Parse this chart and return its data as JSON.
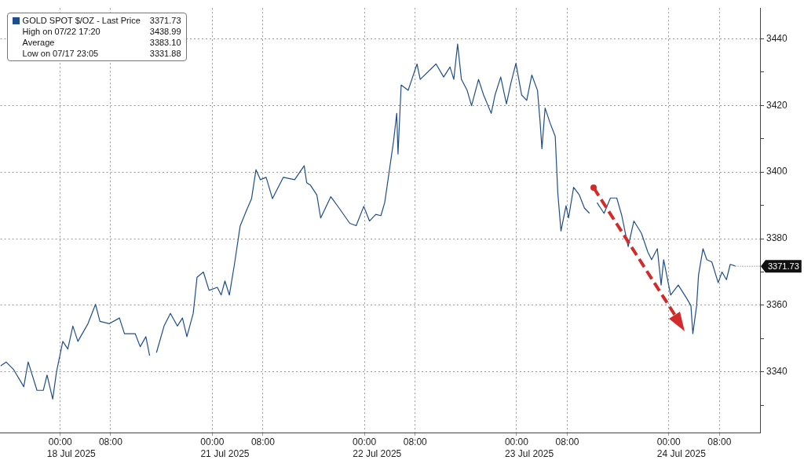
{
  "chart_data": [
    {
      "type": "line",
      "x": [
        "2025-07-17T14:30",
        "2025-07-17T15:24",
        "2025-07-17T16:36",
        "2025-07-17T18:12",
        "2025-07-17T18:54",
        "2025-07-17T20:18",
        "2025-07-17T21:18",
        "2025-07-17T21:54",
        "2025-07-17T22:48",
        "2025-07-17T23:24",
        "2025-07-18T00:24",
        "2025-07-18T01:12",
        "2025-07-18T02:00",
        "2025-07-18T02:48",
        "2025-07-18T04:24",
        "2025-07-18T05:36",
        "2025-07-18T06:18",
        "2025-07-18T07:48",
        "2025-07-18T09:24",
        "2025-07-18T10:12",
        "2025-07-18T11:54",
        "2025-07-18T12:42",
        "2025-07-18T13:36",
        "2025-07-18T14:12"
      ],
      "series": [
        {
          "name": "GOLD SPOT $/OZ - Last Price",
          "color": "#1f4e8c",
          "values": [
            3341.8,
            3343.0,
            3340.7,
            3335.6,
            3343.0,
            3334.5,
            3334.5,
            3339.1,
            3331.9,
            3340.0,
            3349.2,
            3346.9,
            3353.8,
            3349.2,
            3354.5,
            3360.3,
            3355.2,
            3354.5,
            3356.2,
            3351.5,
            3351.5,
            3347.6,
            3350.6,
            3344.9
          ]
        }
      ],
      "xlim": [
        "2025-07-17T14:30",
        "2025-07-18T14:18"
      ],
      "xticks": [
        {
          "value": "2025-07-18T00:00",
          "label": "00:00"
        },
        {
          "value": "2025-07-18T08:00",
          "label": "08:00"
        }
      ],
      "ylim": [
        3321.8,
        3449.2
      ],
      "yticks": [
        3340,
        3360,
        3380,
        3400,
        3420,
        3440
      ],
      "tick_labels": "x",
      "grid": true,
      "legend": "top left",
      "marker": "none",
      "line_style": "solid",
      "annotations": [
        "3371.73",
        "High on 07/22 17:20",
        "3438.99",
        "Average",
        "3383.10",
        "Low on 07/17 23:05",
        "3331.88",
        "18 Jul 2025"
      ]
    },
    {
      "type": "line",
      "x": [
        "2025-07-20T15:12",
        "2025-07-20T16:24",
        "2025-07-20T17:24",
        "2025-07-20T18:30",
        "2025-07-20T19:18",
        "2025-07-20T20:00",
        "2025-07-20T21:00",
        "2025-07-20T21:36",
        "2025-07-20T22:36",
        "2025-07-20T23:30",
        "2025-07-21T00:48",
        "2025-07-21T01:24",
        "2025-07-21T02:00",
        "2025-07-21T02:42",
        "2025-07-21T03:30",
        "2025-07-21T04:24",
        "2025-07-21T05:24",
        "2025-07-21T06:12",
        "2025-07-21T06:54",
        "2025-07-21T07:36",
        "2025-07-21T08:30",
        "2025-07-21T09:30",
        "2025-07-21T11:12",
        "2025-07-21T13:00",
        "2025-07-21T14:30",
        "2025-07-21T14:54",
        "2025-07-21T15:30",
        "2025-07-21T16:30",
        "2025-07-21T17:06",
        "2025-07-21T18:42",
        "2025-07-21T20:00",
        "2025-07-21T21:42",
        "2025-07-21T22:42",
        "2025-07-21T23:54",
        "2025-07-22T00:48",
        "2025-07-22T01:48",
        "2025-07-22T02:36",
        "2025-07-22T03:12",
        "2025-07-22T03:54",
        "2025-07-22T04:36",
        "2025-07-22T05:06",
        "2025-07-22T05:18",
        "2025-07-22T05:48",
        "2025-07-22T06:54",
        "2025-07-22T08:18",
        "2025-07-22T08:48",
        "2025-07-22T11:18",
        "2025-07-22T12:30",
        "2025-07-22T13:30",
        "2025-07-22T14:06",
        "2025-07-22T14:42",
        "2025-07-22T15:18",
        "2025-07-22T16:12",
        "2025-07-22T16:54",
        "2025-07-22T18:00",
        "2025-07-22T18:48",
        "2025-07-22T20:00",
        "2025-07-22T20:36",
        "2025-07-22T21:30",
        "2025-07-22T22:24",
        "2025-07-22T23:06",
        "2025-07-22T23:54",
        "2025-07-23T00:48",
        "2025-07-23T01:36",
        "2025-07-23T02:24",
        "2025-07-23T03:18",
        "2025-07-23T03:42",
        "2025-07-23T04:00",
        "2025-07-23T04:30",
        "2025-07-23T05:18",
        "2025-07-23T06:06",
        "2025-07-23T06:30",
        "2025-07-23T07:00",
        "2025-07-23T07:48",
        "2025-07-23T08:12",
        "2025-07-23T09:00",
        "2025-07-23T09:54",
        "2025-07-23T10:42",
        "2025-07-23T11:30",
        "2025-07-23T12:06",
        "2025-07-23T12:42",
        "2025-07-23T13:48",
        "2025-07-23T14:48",
        "2025-07-23T15:48",
        "2025-07-23T16:36",
        "2025-07-23T17:36",
        "2025-07-23T18:30",
        "2025-07-23T19:42",
        "2025-07-23T20:42",
        "2025-07-23T21:18",
        "2025-07-23T22:12",
        "2025-07-23T22:48",
        "2025-07-23T23:12",
        "2025-07-24T00:18",
        "2025-07-24T01:30",
        "2025-07-24T02:48",
        "2025-07-24T03:30",
        "2025-07-24T03:48",
        "2025-07-24T04:24",
        "2025-07-24T04:42",
        "2025-07-24T05:24",
        "2025-07-24T06:00",
        "2025-07-24T06:48",
        "2025-07-24T07:48",
        "2025-07-24T08:24",
        "2025-07-24T09:06",
        "2025-07-24T09:42",
        "2025-07-24T10:30"
      ],
      "series": [
        {
          "color": "#1f4e8c",
          "values": [
            3345.8,
            3353.8,
            3357.6,
            3353.8,
            3356.2,
            3350.6,
            3357.6,
            3368.4,
            3370.0,
            3364.5,
            3365.4,
            3363.1,
            3367.3,
            3363.1,
            3372.3,
            3383.8,
            3388.5,
            3392.0,
            3400.7,
            3397.7,
            3398.4,
            3392.0,
            3398.4,
            3397.7,
            3401.9,
            3396.8,
            3396.0,
            3393.1,
            3386.2,
            3392.6,
            3389.2,
            3384.6,
            3383.9,
            3389.7,
            3385.3,
            3387.3,
            3386.9,
            3390.8,
            3400.0,
            3409.3,
            3417.6,
            3405.4,
            3426.1,
            3424.5,
            3432.4,
            3427.8,
            3432.4,
            3428.5,
            3431.5,
            3427.8,
            3438.4,
            3427.8,
            3424.5,
            3419.9,
            3427.8,
            3423.1,
            3417.6,
            3423.1,
            3428.5,
            3420.4,
            3426.6,
            3432.6,
            3423.1,
            3421.5,
            3429.1,
            3424.5,
            3415.3,
            3407.0,
            3419.2,
            3414.6,
            3410.7,
            3393.8,
            3382.3,
            3389.9,
            3386.2,
            3395.4,
            3393.1,
            3389.2,
            3387.6,
            null,
            3390.8,
            3387.6,
            3392.2,
            3392.2,
            3386.9,
            3377.6,
            3385.3,
            3381.6,
            3376.0,
            3373.7,
            3377.0,
            3366.1,
            3373.7,
            3363.1,
            3366.1,
            3362.2,
            3359.9,
            3351.5,
            3359.9,
            3369.1,
            3377.0,
            3373.7,
            3373.0,
            3366.8,
            3370.0,
            3367.7,
            3372.3,
            3371.8
          ]
        }
      ],
      "xlim": [
        "2025-07-20T14:18",
        "2025-07-24T14:24"
      ],
      "xticks": [
        {
          "value": "2025-07-21T00:00",
          "label": "00:00"
        },
        {
          "value": "2025-07-21T08:00",
          "label": "08:00"
        },
        {
          "value": "2025-07-22T00:00",
          "label": "00:00"
        },
        {
          "value": "2025-07-22T08:00",
          "label": "08:00"
        },
        {
          "value": "2025-07-23T00:00",
          "label": "00:00"
        },
        {
          "value": "2025-07-23T08:00",
          "label": "08:00"
        },
        {
          "value": "2025-07-24T00:00",
          "label": "00:00"
        },
        {
          "value": "2025-07-24T08:00",
          "label": "08:00"
        }
      ],
      "x2lim": [
        "2025-07-20T14:18",
        "2025-07-24T14:24"
      ],
      "x2ticks": [
        {
          "value": "2025-07-21T02:00",
          "label": "21 Jul 2025"
        },
        {
          "value": "2025-07-22T02:00",
          "label": "22 Jul 2025"
        },
        {
          "value": "2025-07-23T02:00",
          "label": "23 Jul 2025"
        },
        {
          "value": "2025-07-24T02:00",
          "label": "24 Jul 2025"
        }
      ],
      "ylim": [
        3321.8,
        3449.2
      ],
      "yticks": [
        {
          "value": 3330,
          "label": null
        },
        3340,
        {
          "value": 3350,
          "label": null
        },
        3360,
        {
          "value": 3370,
          "label": null
        },
        3380,
        {
          "value": 3390,
          "label": null
        },
        3400,
        {
          "value": 3410,
          "label": null
        },
        3420,
        {
          "value": 3430,
          "label": null
        },
        3440
      ],
      "grid": true,
      "marker": "none",
      "line_style": "solid",
      "annotations": [
        {
          "text": "3371.73",
          "x": "2025-07-24T10:30",
          "y": 3371.73
        }
      ]
    }
  ]
}
